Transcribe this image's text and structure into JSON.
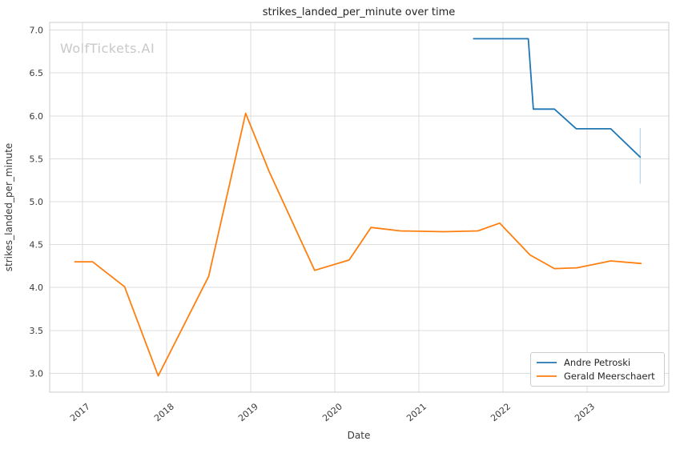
{
  "watermark": "WolfTickets.AI",
  "chart_data": {
    "type": "line",
    "title": "strikes_landed_per_minute over time",
    "xlabel": "Date",
    "ylabel": "strikes_landed_per_minute",
    "xlim": [
      2016.61,
      2023.97
    ],
    "ylim": [
      2.78,
      7.09
    ],
    "grid": true,
    "legend_position": "lower right",
    "x_ticks": [
      {
        "value": 2017,
        "label": "2017"
      },
      {
        "value": 2018,
        "label": "2018"
      },
      {
        "value": 2019,
        "label": "2019"
      },
      {
        "value": 2020,
        "label": "2020"
      },
      {
        "value": 2021,
        "label": "2021"
      },
      {
        "value": 2022,
        "label": "2022"
      },
      {
        "value": 2023,
        "label": "2023"
      }
    ],
    "y_ticks": [
      {
        "value": 3.0,
        "label": "3.0"
      },
      {
        "value": 3.5,
        "label": "3.5"
      },
      {
        "value": 4.0,
        "label": "4.0"
      },
      {
        "value": 4.5,
        "label": "4.5"
      },
      {
        "value": 5.0,
        "label": "5.0"
      },
      {
        "value": 5.5,
        "label": "5.5"
      },
      {
        "value": 6.0,
        "label": "6.0"
      },
      {
        "value": 6.5,
        "label": "6.5"
      },
      {
        "value": 7.0,
        "label": "7.0"
      }
    ],
    "series": [
      {
        "name": "Andre Petroski",
        "color": "#1f77b4",
        "x": [
          2021.65,
          2022.3,
          2022.36,
          2022.61,
          2022.87,
          2023.28,
          2023.63
        ],
        "y": [
          6.9,
          6.9,
          6.08,
          6.08,
          5.85,
          5.85,
          5.52
        ]
      },
      {
        "name": "Gerald Meerschaert",
        "color": "#ff7f0e",
        "x": [
          2016.91,
          2017.12,
          2017.5,
          2017.9,
          2018.5,
          2018.94,
          2019.22,
          2019.76,
          2020.17,
          2020.43,
          2020.78,
          2021.3,
          2021.7,
          2021.96,
          2022.32,
          2022.61,
          2022.88,
          2023.28,
          2023.64
        ],
        "y": [
          4.3,
          4.3,
          4.01,
          2.97,
          4.13,
          6.03,
          5.35,
          4.2,
          4.32,
          4.7,
          4.66,
          4.65,
          4.66,
          4.75,
          4.38,
          4.22,
          4.23,
          4.31,
          4.28
        ]
      }
    ],
    "error_bar": {
      "series": "Andre Petroski",
      "x": 2023.63,
      "y_low": 5.21,
      "y_high": 5.86
    },
    "colors": {
      "grid": "#dcdcdc",
      "spine": "#cccccc",
      "tick_text": "#3a3a3a",
      "title_text": "#262626",
      "watermark": "#c8c8c8",
      "error_bar": "#b5d5ea",
      "background": "#ffffff"
    }
  }
}
